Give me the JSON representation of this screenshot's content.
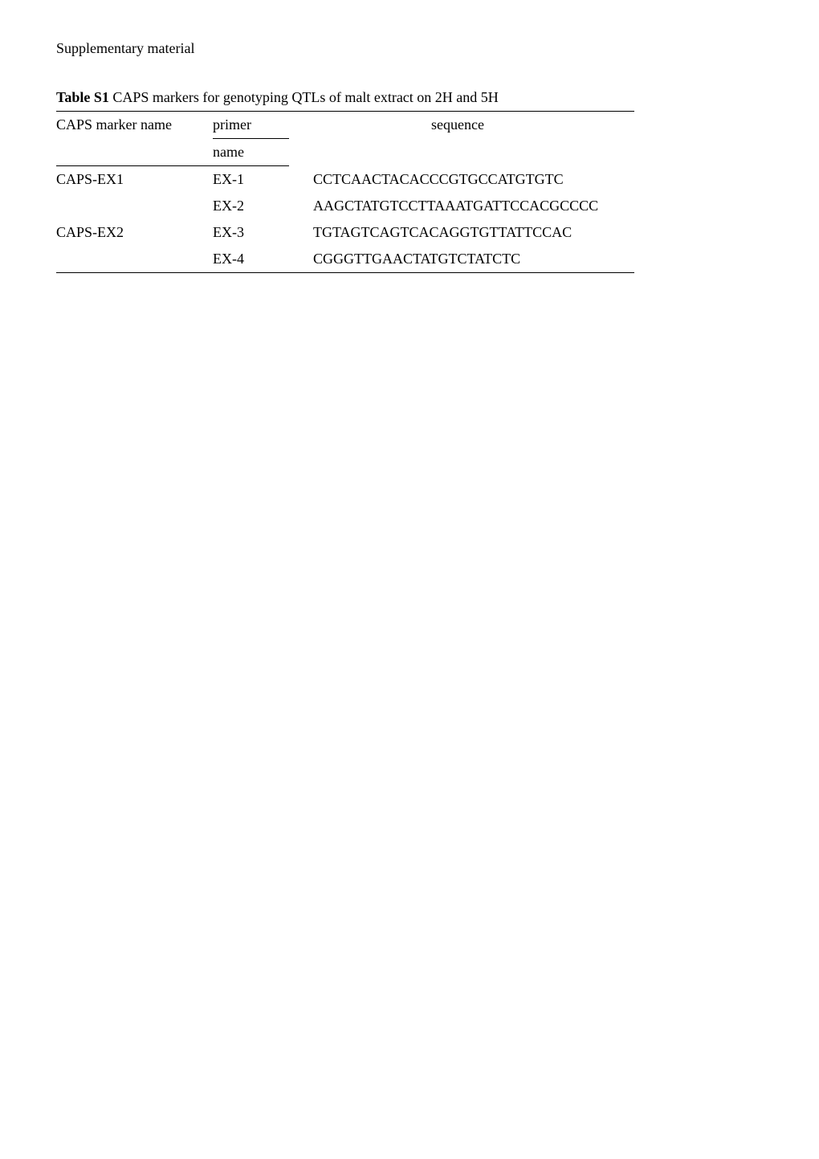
{
  "section_header": "Supplementary material",
  "caption": {
    "label": "Table S1",
    "text": " CAPS markers for genotyping QTLs of malt extract on 2H and 5H"
  },
  "table": {
    "headers": {
      "caps": "CAPS marker name",
      "primer_top": "primer",
      "primer_bottom": "name",
      "sequence": "sequence"
    },
    "rows": [
      {
        "caps": "CAPS-EX1",
        "primer": "EX-1",
        "seq": "CCTCAACTACACCCGTGCCATGTGTC"
      },
      {
        "caps": "",
        "primer": "EX-2",
        "seq": "AAGCTATGTCCTTAAATGATTCCACGCCCC"
      },
      {
        "caps": "CAPS-EX2",
        "primer": "EX-3",
        "seq": "TGTAGTCAGTCACAGGTGTTATTCCAC"
      },
      {
        "caps": "",
        "primer": "EX-4",
        "seq": "CGGGTTGAACTATGTCTATCTC"
      }
    ]
  }
}
